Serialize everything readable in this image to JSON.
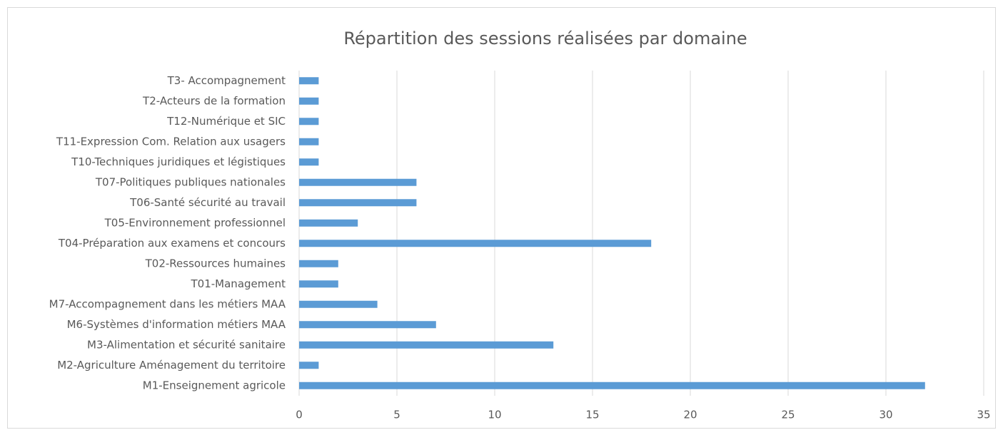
{
  "chart_data": {
    "type": "hbar",
    "title": "Répartition des sessions réalisées par domaine",
    "categories": [
      "M1-Enseignement agricole",
      "M2-Agriculture Aménagement du territoire",
      "M3-Alimentation et sécurité sanitaire",
      "M6-Systèmes d'information métiers MAA",
      "M7-Accompagnement dans les métiers MAA",
      "T01-Management",
      "T02-Ressources humaines",
      "T04-Préparation aux examens et concours",
      "T05-Environnement professionnel",
      "T06-Santé sécurité au travail",
      "T07-Politiques publiques nationales",
      "T10-Techniques juridiques et légistiques",
      "T11-Expression Com. Relation aux usagers",
      "T12-Numérique et SIC",
      "T2-Acteurs de la formation",
      "T3- Accompagnement"
    ],
    "values": [
      32,
      1,
      13,
      7,
      4,
      2,
      2,
      18,
      3,
      6,
      6,
      1,
      1,
      1,
      1,
      1
    ],
    "color": "#5b9bd5",
    "xlim": [
      0,
      35
    ],
    "xticks": [
      0,
      5,
      10,
      15,
      20,
      25,
      30,
      35
    ],
    "grid": true
  }
}
